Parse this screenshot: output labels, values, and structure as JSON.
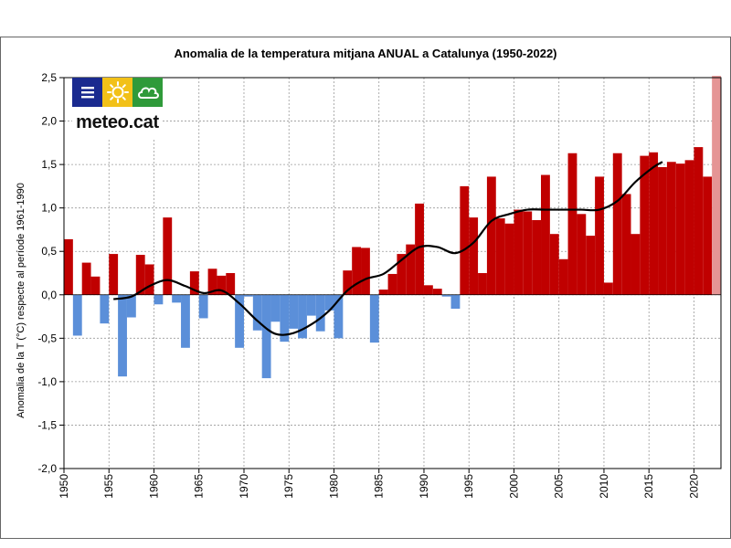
{
  "chart_data": {
    "type": "bar",
    "title": "Anomalia de la temperatura mitjana ANUAL a Catalunya (1950-2022)",
    "xlabel": "",
    "ylabel": "Anomalia de la T (°C) respecte al període 1961-1990",
    "ylim": [
      -2.0,
      2.5
    ],
    "yticks": [
      2.5,
      2.0,
      1.5,
      1.0,
      0.5,
      0.0,
      -0.5,
      -1.0,
      -1.5,
      -2.0
    ],
    "ytick_labels": [
      "2,5",
      "2,0",
      "1,5",
      "1,0",
      "0,5",
      "0,0",
      "-0,5",
      "-1,0",
      "-1,5",
      "-2,0"
    ],
    "xticks": [
      "1950",
      "1955",
      "1960",
      "1965",
      "1970",
      "1975",
      "1980",
      "1985",
      "1990",
      "1995",
      "2000",
      "2005",
      "2010",
      "2015",
      "2020"
    ],
    "grid": true,
    "colors": {
      "positive": "#c00000",
      "negative": "#5b8fd9",
      "provisional": "#e59595",
      "smooth": "#000000",
      "grid": "#9a9a9a"
    },
    "years": [
      1950,
      1951,
      1952,
      1953,
      1954,
      1955,
      1956,
      1957,
      1958,
      1959,
      1960,
      1961,
      1962,
      1963,
      1964,
      1965,
      1966,
      1967,
      1968,
      1969,
      1970,
      1971,
      1972,
      1973,
      1974,
      1975,
      1976,
      1977,
      1978,
      1979,
      1980,
      1981,
      1982,
      1983,
      1984,
      1985,
      1986,
      1987,
      1988,
      1989,
      1990,
      1991,
      1992,
      1993,
      1994,
      1995,
      1996,
      1997,
      1998,
      1999,
      2000,
      2001,
      2002,
      2003,
      2004,
      2005,
      2006,
      2007,
      2008,
      2009,
      2010,
      2011,
      2012,
      2013,
      2014,
      2015,
      2016,
      2017,
      2018,
      2019,
      2020,
      2021,
      2022
    ],
    "values": [
      0.64,
      -0.47,
      0.37,
      0.21,
      -0.33,
      0.47,
      -0.94,
      -0.26,
      0.46,
      0.35,
      -0.11,
      0.89,
      -0.09,
      -0.61,
      0.27,
      -0.27,
      0.3,
      0.22,
      0.25,
      -0.61,
      -0.02,
      -0.41,
      -0.96,
      -0.31,
      -0.54,
      -0.39,
      -0.5,
      -0.24,
      -0.42,
      -0.18,
      -0.5,
      0.28,
      0.55,
      0.54,
      -0.55,
      0.06,
      0.24,
      0.47,
      0.58,
      1.05,
      0.11,
      0.07,
      -0.02,
      -0.16,
      1.25,
      0.89,
      0.25,
      1.36,
      0.88,
      0.82,
      0.98,
      0.96,
      0.86,
      1.38,
      0.7,
      0.41,
      1.63,
      0.93,
      0.68,
      1.36,
      0.14,
      1.63,
      1.16,
      0.7,
      1.6,
      1.64,
      1.47,
      1.53,
      1.51,
      1.55,
      1.7,
      1.36,
      2.52
    ],
    "provisional_year": 2022,
    "smooth": {
      "name": "Mitjana mòbil",
      "x": [
        1955,
        1957,
        1959,
        1961,
        1963,
        1965,
        1967,
        1969,
        1971,
        1973,
        1975,
        1977,
        1979,
        1981,
        1983,
        1985,
        1987,
        1989,
        1991,
        1993,
        1995,
        1997,
        1999,
        2001,
        2003,
        2005,
        2007,
        2009,
        2011,
        2013,
        2015,
        2016
      ],
      "y": [
        -0.05,
        -0.02,
        0.1,
        0.17,
        0.1,
        0.02,
        0.05,
        -0.1,
        -0.3,
        -0.45,
        -0.44,
        -0.34,
        -0.18,
        0.05,
        0.18,
        0.24,
        0.4,
        0.55,
        0.55,
        0.48,
        0.6,
        0.85,
        0.93,
        0.98,
        0.98,
        0.98,
        0.98,
        0.98,
        1.08,
        1.3,
        1.47,
        1.53
      ]
    }
  },
  "logo": {
    "text": "meteo.cat"
  }
}
